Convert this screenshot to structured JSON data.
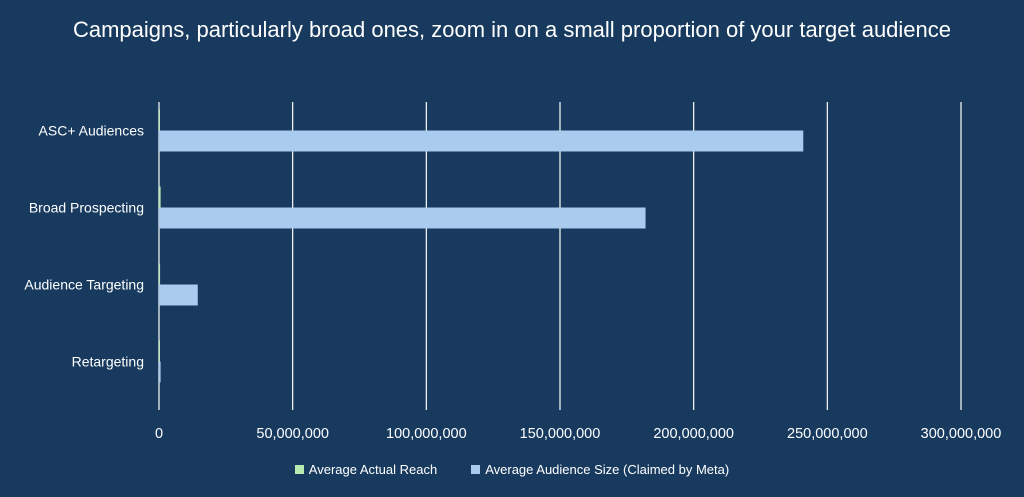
{
  "chart_data": {
    "type": "bar",
    "orientation": "horizontal",
    "title": "Campaigns, particularly broad ones, zoom in on a small proportion of your target audience",
    "categories": [
      "ASC+ Audiences",
      "Broad Prospecting",
      "Audience Targeting",
      "Retargeting"
    ],
    "series": [
      {
        "name": "Average Actual  Reach",
        "color": "#b7ebb0",
        "values": [
          250000,
          600000,
          400000,
          50000
        ]
      },
      {
        "name": "Average Audience Size (Claimed by Meta)",
        "color": "#a9cbee",
        "values": [
          241000000,
          182000000,
          14500000,
          600000
        ]
      }
    ],
    "xlim": [
      0,
      300000000
    ],
    "xticks": [
      0,
      50000000,
      100000000,
      150000000,
      200000000,
      250000000,
      300000000
    ],
    "xtick_labels": [
      "0",
      "50,000,000",
      "100,000,000",
      "150,000,000",
      "200,000,000",
      "250,000,000",
      "300,000,000"
    ],
    "grid": true,
    "legend_position": "bottom"
  }
}
